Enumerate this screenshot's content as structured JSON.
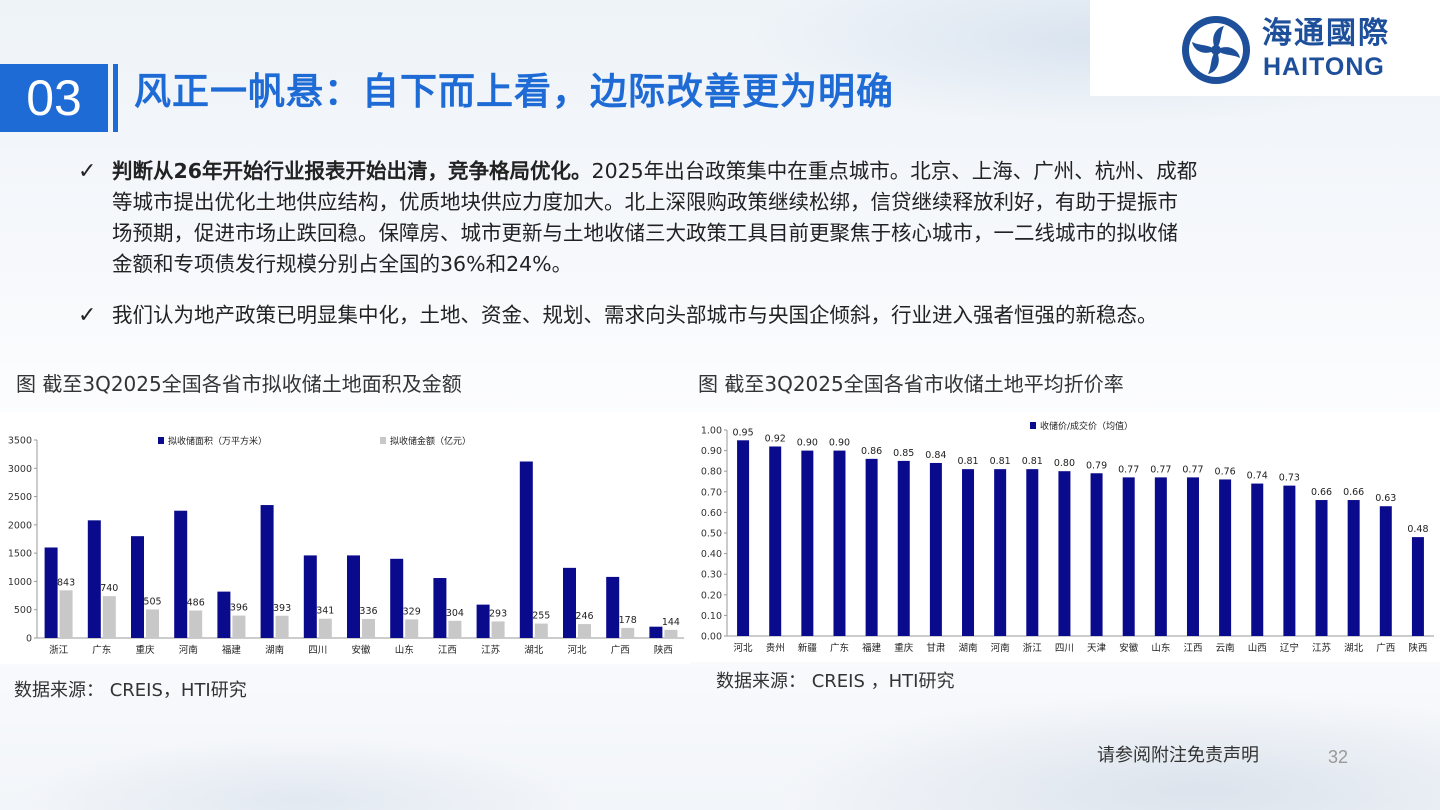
{
  "section": {
    "number": "03",
    "title": "风正一帆悬：自下而上看，边际改善更为明确"
  },
  "logo": {
    "cn": "海通國際",
    "en": "HAITONG"
  },
  "bullets": [
    {
      "check": "✓",
      "lead": "判断从26年开始行业报表开始出清，竞争格局优化。",
      "lines": [
        "2025年出台政策集中在重点城市。北京、上海、广州、杭州、成都",
        "等城市提出优化土地供应结构，优质地块供应力度加大。北上深限购政策继续松绑，信贷继续释放利好，有助于提振市",
        "场预期，促进市场止跌回稳。保障房、城市更新与土地收储三大政策工具目前更聚焦于核心城市，一二线城市的拟收储",
        "金额和专项债发行规模分别占全国的36%和24%。"
      ]
    },
    {
      "check": "✓",
      "text": "我们认为地产政策已明显集中化，土地、资金、规划、需求向头部城市与央国企倾斜，行业进入强者恒强的新稳态。"
    }
  ],
  "figures": {
    "left": {
      "title": "图  截至3Q2025全国各省市拟收储土地面积及金额",
      "source": "数据来源： CREIS，HTI研究"
    },
    "right": {
      "title": "图  截至3Q2025全国各省市收储土地平均折价率",
      "source": "数据来源： CREIS ，HTI研究"
    }
  },
  "footer": {
    "disclaimer": "请参阅附注免责声明",
    "page": "32"
  },
  "colors": {
    "accent": "#1f6bd6",
    "bar_dark": "#0a0a8c",
    "bar_light": "#c8c8c8"
  },
  "chart_data": [
    {
      "type": "bar",
      "categories": [
        "浙江",
        "广东",
        "重庆",
        "河南",
        "福建",
        "湖南",
        "四川",
        "安徽",
        "山东",
        "江西",
        "江苏",
        "湖北",
        "河北",
        "广西",
        "陕西"
      ],
      "series": [
        {
          "name": "拟收储面积（万平方米）",
          "values": [
            1600,
            2080,
            1800,
            2250,
            820,
            2350,
            1460,
            1460,
            1400,
            1060,
            590,
            3120,
            1240,
            1080,
            200
          ]
        },
        {
          "name": "拟收储金额（亿元）",
          "values": [
            843,
            740,
            505,
            486,
            396,
            393,
            341,
            336,
            329,
            304,
            293,
            255,
            246,
            178,
            144
          ],
          "labels": [
            "843",
            "740",
            "505",
            "486",
            "396",
            "393",
            "341",
            "336",
            "329",
            "304",
            "293",
            "255",
            "246",
            "178",
            "144"
          ]
        }
      ],
      "yticks": [
        "0",
        "500",
        "1000",
        "1500",
        "2000",
        "2500",
        "3000",
        "3500"
      ],
      "ylim": [
        0,
        3500
      ],
      "legend": "top"
    },
    {
      "type": "bar",
      "categories": [
        "河北",
        "贵州",
        "新疆",
        "广东",
        "福建",
        "重庆",
        "甘肃",
        "湖南",
        "河南",
        "浙江",
        "四川",
        "天津",
        "安徽",
        "山东",
        "江西",
        "云南",
        "山西",
        "辽宁",
        "江苏",
        "湖北",
        "广西",
        "陕西"
      ],
      "series": [
        {
          "name": "收储价/成交价（均值）",
          "values": [
            0.95,
            0.92,
            0.9,
            0.9,
            0.86,
            0.85,
            0.84,
            0.81,
            0.81,
            0.81,
            0.8,
            0.79,
            0.77,
            0.77,
            0.77,
            0.76,
            0.74,
            0.73,
            0.66,
            0.66,
            0.63,
            0.48
          ],
          "labels": [
            "0.95",
            "0.92",
            "0.90",
            "0.90",
            "0.86",
            "0.85",
            "0.84",
            "0.81",
            "0.81",
            "0.81",
            "0.80",
            "0.79",
            "0.77",
            "0.77",
            "0.77",
            "0.76",
            "0.74",
            "0.73",
            "0.66",
            "0.66",
            "0.63",
            "0.48"
          ]
        }
      ],
      "yticks": [
        "0.00",
        "0.10",
        "0.20",
        "0.30",
        "0.40",
        "0.50",
        "0.60",
        "0.70",
        "0.80",
        "0.90",
        "1.00"
      ],
      "ylim": [
        0,
        1.0
      ],
      "legend": "top"
    }
  ]
}
